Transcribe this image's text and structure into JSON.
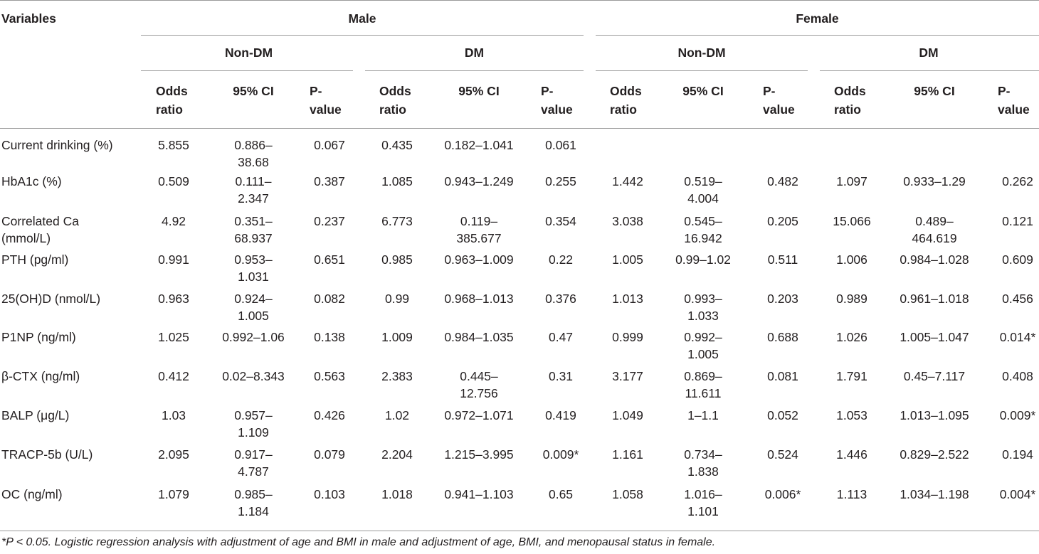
{
  "header": {
    "variables": "Variables",
    "male": "Male",
    "female": "Female",
    "groups": [
      "Non-DM",
      "DM",
      "Non-DM",
      "DM"
    ],
    "subcols": [
      {
        "l1": "Odds",
        "l2": "ratio"
      },
      {
        "l1": "95% CI",
        "l2": ""
      },
      {
        "l1": "P-",
        "l2": "value"
      }
    ]
  },
  "rows": [
    {
      "label": [
        "Current drinking (%)"
      ],
      "cells": [
        [
          "5.855"
        ],
        [
          "0.886–",
          "38.68"
        ],
        [
          "0.067"
        ],
        [
          "0.435"
        ],
        [
          "0.182–1.041"
        ],
        [
          "0.061"
        ],
        [
          ""
        ],
        [
          ""
        ],
        [
          ""
        ],
        [
          ""
        ],
        [
          ""
        ],
        [
          ""
        ]
      ]
    },
    {
      "label": [
        "HbA1c (%)"
      ],
      "cells": [
        [
          "0.509"
        ],
        [
          "0.111–",
          "2.347"
        ],
        [
          "0.387"
        ],
        [
          "1.085"
        ],
        [
          "0.943–1.249"
        ],
        [
          "0.255"
        ],
        [
          "1.442"
        ],
        [
          "0.519–",
          "4.004"
        ],
        [
          "0.482"
        ],
        [
          "1.097"
        ],
        [
          "0.933–1.29"
        ],
        [
          "0.262"
        ]
      ]
    },
    {
      "label": [
        "Correlated Ca",
        "(mmol/L)"
      ],
      "cells": [
        [
          "4.92"
        ],
        [
          "0.351–",
          "68.937"
        ],
        [
          "0.237"
        ],
        [
          "6.773"
        ],
        [
          "0.119–",
          "385.677"
        ],
        [
          "0.354"
        ],
        [
          "3.038"
        ],
        [
          "0.545–",
          "16.942"
        ],
        [
          "0.205"
        ],
        [
          "15.066"
        ],
        [
          "0.489–",
          "464.619"
        ],
        [
          "0.121"
        ]
      ]
    },
    {
      "label": [
        "PTH (pg/ml)"
      ],
      "cells": [
        [
          "0.991"
        ],
        [
          "0.953–",
          "1.031"
        ],
        [
          "0.651"
        ],
        [
          "0.985"
        ],
        [
          "0.963–1.009"
        ],
        [
          "0.22"
        ],
        [
          "1.005"
        ],
        [
          "0.99–1.02"
        ],
        [
          "0.511"
        ],
        [
          "1.006"
        ],
        [
          "0.984–1.028"
        ],
        [
          "0.609"
        ]
      ]
    },
    {
      "label": [
        "25(OH)D (nmol/L)"
      ],
      "cells": [
        [
          "0.963"
        ],
        [
          "0.924–",
          "1.005"
        ],
        [
          "0.082"
        ],
        [
          "0.99"
        ],
        [
          "0.968–1.013"
        ],
        [
          "0.376"
        ],
        [
          "1.013"
        ],
        [
          "0.993–",
          "1.033"
        ],
        [
          "0.203"
        ],
        [
          "0.989"
        ],
        [
          "0.961–1.018"
        ],
        [
          "0.456"
        ]
      ]
    },
    {
      "label": [
        "P1NP (ng/ml)"
      ],
      "cells": [
        [
          "1.025"
        ],
        [
          "0.992–1.06"
        ],
        [
          "0.138"
        ],
        [
          "1.009"
        ],
        [
          "0.984–1.035"
        ],
        [
          "0.47"
        ],
        [
          "0.999"
        ],
        [
          "0.992–",
          "1.005"
        ],
        [
          "0.688"
        ],
        [
          "1.026"
        ],
        [
          "1.005–1.047"
        ],
        [
          "0.014*"
        ]
      ]
    },
    {
      "label": [
        "β-CTX (ng/ml)"
      ],
      "cells": [
        [
          "0.412"
        ],
        [
          "0.02–8.343"
        ],
        [
          "0.563"
        ],
        [
          "2.383"
        ],
        [
          "0.445–",
          "12.756"
        ],
        [
          "0.31"
        ],
        [
          "3.177"
        ],
        [
          "0.869–",
          "11.611"
        ],
        [
          "0.081"
        ],
        [
          "1.791"
        ],
        [
          "0.45–7.117"
        ],
        [
          "0.408"
        ]
      ]
    },
    {
      "label": [
        "BALP (μg/L)"
      ],
      "cells": [
        [
          "1.03"
        ],
        [
          "0.957–",
          "1.109"
        ],
        [
          "0.426"
        ],
        [
          "1.02"
        ],
        [
          "0.972–1.071"
        ],
        [
          "0.419"
        ],
        [
          "1.049"
        ],
        [
          "1–1.1"
        ],
        [
          "0.052"
        ],
        [
          "1.053"
        ],
        [
          "1.013–1.095"
        ],
        [
          "0.009*"
        ]
      ]
    },
    {
      "label": [
        "TRACP-5b (U/L)"
      ],
      "cells": [
        [
          "2.095"
        ],
        [
          "0.917–",
          "4.787"
        ],
        [
          "0.079"
        ],
        [
          "2.204"
        ],
        [
          "1.215–3.995"
        ],
        [
          "0.009*"
        ],
        [
          "1.161"
        ],
        [
          "0.734–",
          "1.838"
        ],
        [
          "0.524"
        ],
        [
          "1.446"
        ],
        [
          "0.829–2.522"
        ],
        [
          "0.194"
        ]
      ]
    },
    {
      "label": [
        "OC (ng/ml)"
      ],
      "cells": [
        [
          "1.079"
        ],
        [
          "0.985–",
          "1.184"
        ],
        [
          "0.103"
        ],
        [
          "1.018"
        ],
        [
          "0.941–1.103"
        ],
        [
          "0.65"
        ],
        [
          "1.058"
        ],
        [
          "1.016–",
          "1.101"
        ],
        [
          "0.006*"
        ],
        [
          "1.113"
        ],
        [
          "1.034–1.198"
        ],
        [
          "0.004*"
        ]
      ]
    }
  ],
  "footnote": "*P < 0.05. Logistic regression analysis with adjustment of age and BMI in male and adjustment of age, BMI, and menopausal status in female."
}
